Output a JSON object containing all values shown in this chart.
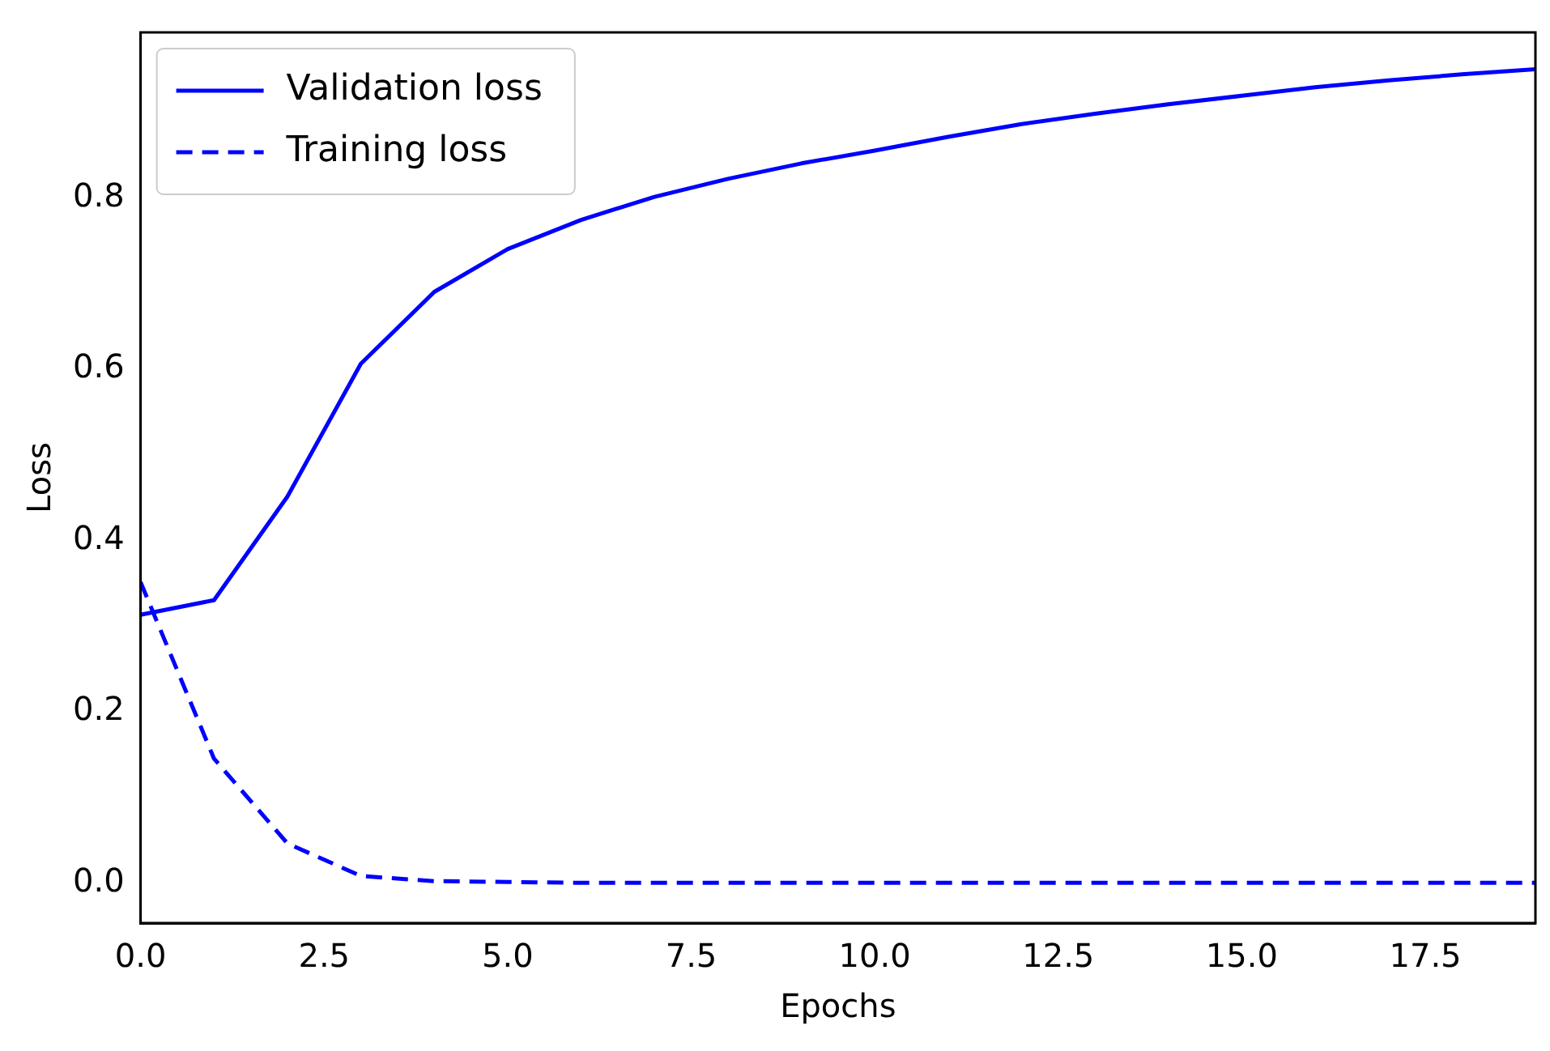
{
  "chart_data": {
    "type": "line",
    "xlabel": "Epochs",
    "ylabel": "Loss",
    "x": [
      0,
      1,
      2,
      3,
      4,
      5,
      6,
      7,
      8,
      9,
      10,
      11,
      12,
      13,
      14,
      15,
      16,
      17,
      18,
      19
    ],
    "series": [
      {
        "name": "Validation loss",
        "color": "#0000ff",
        "line_style": "solid",
        "values": [
          0.313,
          0.33,
          0.451,
          0.606,
          0.69,
          0.74,
          0.774,
          0.801,
          0.822,
          0.84,
          0.855,
          0.871,
          0.886,
          0.898,
          0.909,
          0.919,
          0.929,
          0.937,
          0.944,
          0.95
        ]
      },
      {
        "name": "Training loss",
        "color": "#0000ff",
        "line_style": "dashed",
        "values": [
          0.351,
          0.145,
          0.046,
          0.008,
          0.002,
          0.001,
          0,
          0,
          0,
          0,
          0,
          0,
          0,
          0,
          0,
          0,
          0,
          0,
          0,
          0
        ]
      }
    ],
    "xlim": [
      0,
      19
    ],
    "xticks": [
      {
        "value": 0,
        "label": "0.0"
      },
      {
        "value": 2.5,
        "label": "2.5"
      },
      {
        "value": 5,
        "label": "5.0"
      },
      {
        "value": 7.5,
        "label": "7.5"
      },
      {
        "value": 10,
        "label": "10.0"
      },
      {
        "value": 12.5,
        "label": "12.5"
      },
      {
        "value": 15,
        "label": "15.0"
      },
      {
        "value": 17.5,
        "label": "17.5"
      }
    ],
    "ylim": [
      -0.047,
      0.993
    ],
    "yticks": [
      {
        "value": 0,
        "label": "0.0"
      },
      {
        "value": 0.2,
        "label": "0.2"
      },
      {
        "value": 0.4,
        "label": "0.4"
      },
      {
        "value": 0.6,
        "label": "0.6"
      },
      {
        "value": 0.8,
        "label": "0.8"
      }
    ],
    "legend": "top left",
    "grid": false,
    "marker": "none"
  }
}
